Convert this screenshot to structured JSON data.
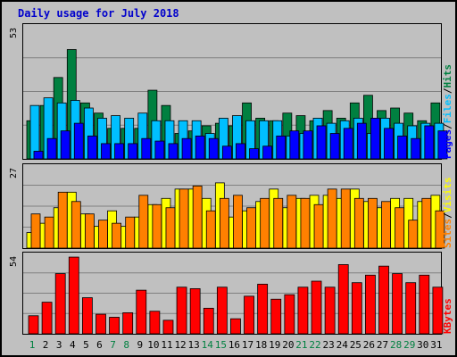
{
  "title": "Daily usage for July 2018",
  "chart_data": [
    {
      "type": "bar",
      "title": "Daily usage for July 2018",
      "categories": [
        "1",
        "2",
        "3",
        "4",
        "5",
        "6",
        "7",
        "8",
        "9",
        "10",
        "11",
        "12",
        "13",
        "14",
        "15",
        "16",
        "17",
        "18",
        "19",
        "20",
        "21",
        "22",
        "23",
        "24",
        "25",
        "26",
        "27",
        "28",
        "29",
        "30",
        "31"
      ],
      "weekend_days": [
        "1",
        "7",
        "8",
        "14",
        "15",
        "21",
        "22",
        "28",
        "29"
      ],
      "ylabel_max": "53",
      "ylim": [
        0,
        53
      ],
      "grid": true,
      "right_label": [
        "Pages",
        "Files",
        "Hits"
      ],
      "series": [
        {
          "name": "Hits",
          "color": "#008040",
          "values": [
            15,
            21,
            32,
            43,
            22,
            18,
            12,
            12,
            12,
            27,
            21,
            10,
            11,
            13,
            14,
            13,
            22,
            16,
            15,
            18,
            17,
            15,
            19,
            16,
            22,
            25,
            19,
            20,
            18,
            15,
            22
          ]
        },
        {
          "name": "Files",
          "color": "#00bfff",
          "values": [
            21,
            24,
            22,
            23,
            20,
            16,
            17,
            16,
            18,
            15,
            15,
            15,
            15,
            10,
            16,
            17,
            15,
            15,
            15,
            9,
            10,
            16,
            14,
            15,
            16,
            10,
            16,
            14,
            13,
            14,
            14
          ]
        },
        {
          "name": "Pages",
          "color": "#0000ff",
          "values": [
            3,
            8,
            11,
            14,
            9,
            6,
            6,
            6,
            8,
            7,
            6,
            8,
            9,
            8,
            5,
            6,
            4,
            5,
            9,
            11,
            11,
            13,
            10,
            12,
            14,
            16,
            12,
            9,
            8,
            13,
            11
          ]
        }
      ]
    },
    {
      "type": "bar",
      "ylabel_max": "27",
      "ylim": [
        0,
        27
      ],
      "grid": true,
      "right_label": [
        "Sites",
        "Visits"
      ],
      "series": [
        {
          "name": "Visits",
          "color": "#ffff00",
          "values": [
            5,
            8,
            13,
            18,
            11,
            7,
            12,
            7,
            10,
            14,
            16,
            19,
            19,
            16,
            21,
            10,
            12,
            15,
            19,
            13,
            16,
            17,
            17,
            16,
            19,
            15,
            13,
            16,
            16,
            15,
            17
          ]
        },
        {
          "name": "Sites",
          "color": "#ff8000",
          "values": [
            11,
            10,
            18,
            15,
            11,
            9,
            8,
            10,
            17,
            14,
            13,
            19,
            20,
            12,
            16,
            17,
            13,
            16,
            16,
            17,
            16,
            14,
            19,
            19,
            16,
            16,
            15,
            13,
            9,
            16,
            12
          ]
        }
      ]
    },
    {
      "type": "bar",
      "ylabel_max": "54",
      "ylim": [
        0,
        54
      ],
      "grid": true,
      "right_label": [
        "KBytes"
      ],
      "series": [
        {
          "name": "KBytes",
          "color": "#ff0000",
          "values": [
            12,
            21,
            40,
            51,
            24,
            13,
            11,
            14,
            29,
            15,
            9,
            31,
            30,
            17,
            31,
            10,
            25,
            33,
            23,
            26,
            31,
            35,
            31,
            46,
            34,
            39,
            45,
            40,
            34,
            39,
            31
          ]
        }
      ]
    }
  ]
}
